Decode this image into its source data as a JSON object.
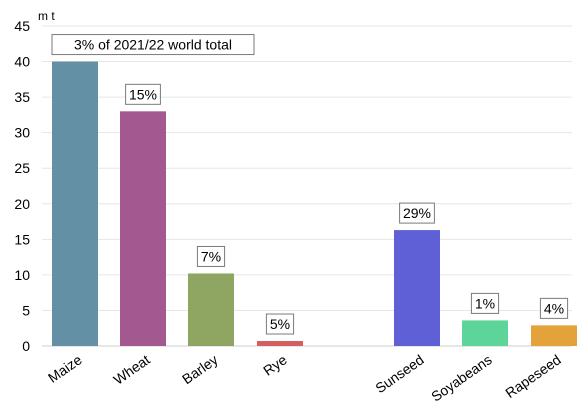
{
  "chart_data": {
    "type": "bar",
    "ylabel": "m t",
    "ylim": [
      0,
      45
    ],
    "yticks": [
      0,
      5,
      10,
      15,
      20,
      25,
      30,
      35,
      40,
      45
    ],
    "grid": true,
    "categories": [
      "Maize",
      "Wheat",
      "Barley",
      "Rye",
      "Sunseed",
      "Soyabeans",
      "Rapeseed"
    ],
    "values": [
      40,
      33,
      10.2,
      0.7,
      16.3,
      3.6,
      2.9
    ],
    "data_labels": [
      "3% of 2021/22 world total",
      "15%",
      "7%",
      "5%",
      "29%",
      "1%",
      "4%"
    ],
    "colors": [
      "#6490a6",
      "#a3588f",
      "#8fa663",
      "#d2605f",
      "#6060d6",
      "#5dd49a",
      "#e3a23a"
    ]
  }
}
